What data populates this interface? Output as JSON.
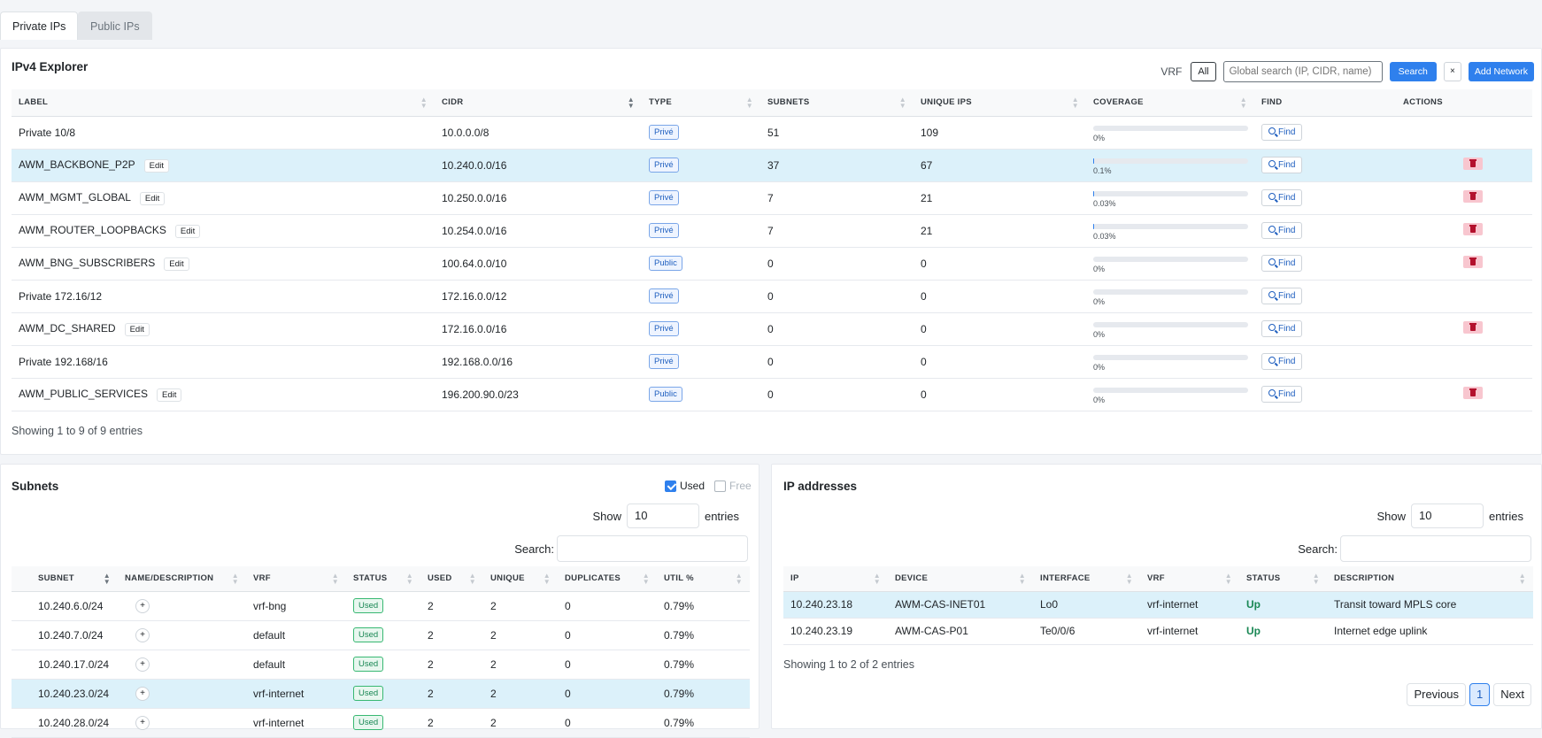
{
  "tabs": [
    "Private IPs",
    "Public IPs"
  ],
  "explorer": {
    "title": "IPv4 Explorer",
    "vrf_label": "VRF",
    "vrf_value": "All",
    "search_placeholder": "Global search (IP, CIDR, name)",
    "search_label": "Search",
    "clear_label": "×",
    "add_label": "Add Network",
    "columns": [
      "LABEL",
      "CIDR",
      "TYPE",
      "SUBNETS",
      "UNIQUE IPS",
      "COVERAGE",
      "FIND",
      "ACTIONS"
    ],
    "edit_label": "Edit",
    "find_label": "Find",
    "rows": [
      {
        "label": "Private 10/8",
        "cidr": "10.0.0.0/8",
        "type": "Privé",
        "subnets": "51",
        "unique": "109",
        "coverage": "0%",
        "cov_val": 0,
        "edit": false,
        "del": false,
        "hl": false
      },
      {
        "label": "AWM_BACKBONE_P2P",
        "cidr": "10.240.0.0/16",
        "type": "Privé",
        "subnets": "37",
        "unique": "67",
        "coverage": "0.1%",
        "cov_val": 0.1,
        "edit": true,
        "del": true,
        "hl": true
      },
      {
        "label": "AWM_MGMT_GLOBAL",
        "cidr": "10.250.0.0/16",
        "type": "Privé",
        "subnets": "7",
        "unique": "21",
        "coverage": "0.03%",
        "cov_val": 0.03,
        "edit": true,
        "del": true,
        "hl": false
      },
      {
        "label": "AWM_ROUTER_LOOPBACKS",
        "cidr": "10.254.0.0/16",
        "type": "Privé",
        "subnets": "7",
        "unique": "21",
        "coverage": "0.03%",
        "cov_val": 0.03,
        "edit": true,
        "del": true,
        "hl": false
      },
      {
        "label": "AWM_BNG_SUBSCRIBERS",
        "cidr": "100.64.0.0/10",
        "type": "Public",
        "subnets": "0",
        "unique": "0",
        "coverage": "0%",
        "cov_val": 0,
        "edit": true,
        "del": true,
        "hl": false
      },
      {
        "label": "Private 172.16/12",
        "cidr": "172.16.0.0/12",
        "type": "Privé",
        "subnets": "0",
        "unique": "0",
        "coverage": "0%",
        "cov_val": 0,
        "edit": false,
        "del": false,
        "hl": false
      },
      {
        "label": "AWM_DC_SHARED",
        "cidr": "172.16.0.0/16",
        "type": "Privé",
        "subnets": "0",
        "unique": "0",
        "coverage": "0%",
        "cov_val": 0,
        "edit": true,
        "del": true,
        "hl": false
      },
      {
        "label": "Private 192.168/16",
        "cidr": "192.168.0.0/16",
        "type": "Privé",
        "subnets": "0",
        "unique": "0",
        "coverage": "0%",
        "cov_val": 0,
        "edit": false,
        "del": false,
        "hl": false
      },
      {
        "label": "AWM_PUBLIC_SERVICES",
        "cidr": "196.200.90.0/23",
        "type": "Public",
        "subnets": "0",
        "unique": "0",
        "coverage": "0%",
        "cov_val": 0,
        "edit": true,
        "del": true,
        "hl": false
      }
    ],
    "showing": "Showing 1 to 9 of 9 entries"
  },
  "subnets": {
    "title": "Subnets",
    "used_label": "Used",
    "used_checked": true,
    "free_label": "Free",
    "free_checked": false,
    "show_label": "Show",
    "show_value": "10",
    "entries_label": "entries",
    "search_label": "Search:",
    "columns": [
      "SUBNET",
      "NAME/DESCRIPTION",
      "VRF",
      "STATUS",
      "USED",
      "UNIQUE",
      "DUPLICATES",
      "UTIL %"
    ],
    "plus_label": "+",
    "rows": [
      {
        "subnet": "10.240.6.0/24",
        "vrf": "vrf-bng",
        "status": "Used",
        "used": "2",
        "unique": "2",
        "dup": "0",
        "util": "0.79%",
        "hl": false
      },
      {
        "subnet": "10.240.7.0/24",
        "vrf": "default",
        "status": "Used",
        "used": "2",
        "unique": "2",
        "dup": "0",
        "util": "0.79%",
        "hl": false
      },
      {
        "subnet": "10.240.17.0/24",
        "vrf": "default",
        "status": "Used",
        "used": "2",
        "unique": "2",
        "dup": "0",
        "util": "0.79%",
        "hl": false
      },
      {
        "subnet": "10.240.23.0/24",
        "vrf": "vrf-internet",
        "status": "Used",
        "used": "2",
        "unique": "2",
        "dup": "0",
        "util": "0.79%",
        "hl": true
      },
      {
        "subnet": "10.240.28.0/24",
        "vrf": "vrf-internet",
        "status": "Used",
        "used": "2",
        "unique": "2",
        "dup": "0",
        "util": "0.79%",
        "hl": false
      }
    ]
  },
  "ips": {
    "title": "IP addresses",
    "show_label": "Show",
    "show_value": "10",
    "entries_label": "entries",
    "search_label": "Search:",
    "columns": [
      "IP",
      "DEVICE",
      "INTERFACE",
      "VRF",
      "STATUS",
      "DESCRIPTION"
    ],
    "rows": [
      {
        "ip": "10.240.23.18",
        "device": "AWM-CAS-INET01",
        "iface": "Lo0",
        "vrf": "vrf-internet",
        "status": "Up",
        "desc": "Transit toward MPLS core",
        "hl": true
      },
      {
        "ip": "10.240.23.19",
        "device": "AWM-CAS-P01",
        "iface": "Te0/0/6",
        "vrf": "vrf-internet",
        "status": "Up",
        "desc": "Internet edge uplink",
        "hl": false
      }
    ],
    "showing": "Showing 1 to 2 of 2 entries",
    "prev_label": "Previous",
    "page": "1",
    "next_label": "Next"
  }
}
